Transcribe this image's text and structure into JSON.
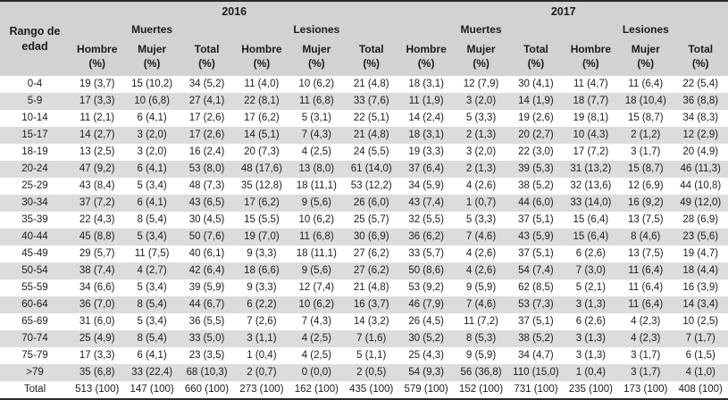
{
  "table": {
    "row_header": {
      "line1": "Rango de",
      "line2": "edad"
    },
    "years": [
      "2016",
      "2017"
    ],
    "groups": [
      "Muertes",
      "Lesiones",
      "Muertes",
      "Lesiones"
    ],
    "sub_labels": [
      "Hombre",
      "Mujer",
      "Total"
    ],
    "sub_unit": "(%)",
    "rows": [
      {
        "label": "0-4",
        "values": [
          "19 (3,7)",
          "15 (10,2)",
          "34 (5,2)",
          "11 (4,0)",
          "10 (6,2)",
          "21 (4,8)",
          "18 (3,1)",
          "12 (7,9)",
          "30 (4,1)",
          "11 (4,7)",
          "11 (6,4)",
          "22 (5,4)"
        ]
      },
      {
        "label": "5-9",
        "values": [
          "17 (3,3)",
          "10 (6,8)",
          "27 (4,1)",
          "22 (8,1)",
          "11 (6,8)",
          "33 (7,6)",
          "11 (1,9)",
          "3 (2,0)",
          "14 (1,9)",
          "18 (7,7)",
          "18 (10,4)",
          "36 (8,8)"
        ]
      },
      {
        "label": "10-14",
        "values": [
          "11 (2,1)",
          "6 (4,1)",
          "17 (2,6)",
          "17 (6,2)",
          "5 (3,1)",
          "22 (5,1)",
          "14 (2,4)",
          "5 (3,3)",
          "19 (2,6)",
          "19 (8,1)",
          "15 (8,7)",
          "34 (8,3)"
        ]
      },
      {
        "label": "15-17",
        "values": [
          "14 (2,7)",
          "3 (2,0)",
          "17 (2,6)",
          "14 (5,1)",
          "7 (4,3)",
          "21 (4,8)",
          "18 (3,1)",
          "2 (1,3)",
          "20 (2,7)",
          "10 (4,3)",
          "2 (1,2)",
          "12 (2,9)"
        ]
      },
      {
        "label": "18-19",
        "values": [
          "13 (2,5)",
          "3 (2,0)",
          "16 (2,4)",
          "20 (7,3)",
          "4 (2,5)",
          "24 (5,5)",
          "19 (3,3)",
          "3 (2,0)",
          "22 (3,0)",
          "17 (7,2)",
          "3 (1,7)",
          "20 (4,9)"
        ]
      },
      {
        "label": "20-24",
        "values": [
          "47 (9,2)",
          "6 (4,1)",
          "53 (8,0)",
          "48 (17,6)",
          "13 (8,0)",
          "61 (14,0)",
          "37 (6,4)",
          "2 (1,3)",
          "39 (5,3)",
          "31 (13,2)",
          "15 (8,7)",
          "46 (11,3)"
        ]
      },
      {
        "label": "25-29",
        "values": [
          "43 (8,4)",
          "5 (3,4)",
          "48 (7,3)",
          "35 (12,8)",
          "18 (11,1)",
          "53 (12,2)",
          "34 (5,9)",
          "4 (2,6)",
          "38 (5,2)",
          "32 (13,6)",
          "12 (6,9)",
          "44 (10,8)"
        ]
      },
      {
        "label": "30-34",
        "values": [
          "37 (7,2)",
          "6 (4,1)",
          "43 (6,5)",
          "17 (6,2)",
          "9 (5,6)",
          "26 (6,0)",
          "43 (7,4)",
          "1 (0,7)",
          "44 (6,0)",
          "33 (14,0)",
          "16 (9,2)",
          "49 (12,0)"
        ]
      },
      {
        "label": "35-39",
        "values": [
          "22 (4,3)",
          "8 (5,4)",
          "30 (4,5)",
          "15 (5,5)",
          "10 (6,2)",
          "25 (5,7)",
          "32 (5,5)",
          "5 (3,3)",
          "37 (5,1)",
          "15 (6,4)",
          "13 (7,5)",
          "28 (6,9)"
        ]
      },
      {
        "label": "40-44",
        "values": [
          "45 (8,8)",
          "5 (3,4)",
          "50 (7,6)",
          "19 (7,0)",
          "11 (6,8)",
          "30 (6,9)",
          "36 (6,2)",
          "7 (4,6)",
          "43 (5,9)",
          "15 (6,4)",
          "8 (4,6)",
          "23 (5,6)"
        ]
      },
      {
        "label": "45-49",
        "values": [
          "29 (5,7)",
          "11 (7,5)",
          "40 (6,1)",
          "9 (3,3)",
          "18 (11,1)",
          "27 (6,2)",
          "33 (5,7)",
          "4 (2,6)",
          "37 (5,1)",
          "6 (2,6)",
          "13 (7,5)",
          "19 (4,7)"
        ]
      },
      {
        "label": "50-54",
        "values": [
          "38 (7,4)",
          "4 (2,7)",
          "42 (6,4)",
          "18 (6,6)",
          "9 (5,6)",
          "27 (6,2)",
          "50 (8,6)",
          "4 (2,6)",
          "54 (7,4)",
          "7 (3,0)",
          "11 (6,4)",
          "18 (4,4)"
        ]
      },
      {
        "label": "55-59",
        "values": [
          "34 (6,6)",
          "5 (3,4)",
          "39 (5,9)",
          "9 (3,3)",
          "12 (7,4)",
          "21 (4,8)",
          "53 (9,2)",
          "9 (5,9)",
          "62 (8,5)",
          "5 (2,1)",
          "11 (6,4)",
          "16 (3,9)"
        ]
      },
      {
        "label": "60-64",
        "values": [
          "36 (7,0)",
          "8 (5,4)",
          "44 (6,7)",
          "6 (2,2)",
          "10 (6,2)",
          "16 (3,7)",
          "46 (7,9)",
          "7 (4,6)",
          "53 (7,3)",
          "3 (1,3)",
          "11 (6,4)",
          "14 (3,4)"
        ]
      },
      {
        "label": "65-69",
        "values": [
          "31 (6,0)",
          "5 (3,4)",
          "36 (5,5)",
          "7 (2,6)",
          "7 (4,3)",
          "14 (3,2)",
          "26 (4,5)",
          "11 (7,2)",
          "37 (5,1)",
          "6 (2,6)",
          "4 (2,3)",
          "10 (2,5)"
        ]
      },
      {
        "label": "70-74",
        "values": [
          "25 (4,9)",
          "8 (5,4)",
          "33 (5,0)",
          "3 (1,1)",
          "4 (2,5)",
          "7 (1,6)",
          "30 (5,2)",
          "8 (5,3)",
          "38 (5,2)",
          "3 (1,3)",
          "4 (2,3)",
          "7 (1,7)"
        ]
      },
      {
        "label": "75-79",
        "values": [
          "17 (3,3)",
          "6 (4,1)",
          "23 (3,5)",
          "1 (0,4)",
          "4 (2,5)",
          "5 (1,1)",
          "25 (4,3)",
          "9 (5,9)",
          "34 (4,7)",
          "3 (1,3)",
          "3 (1,7)",
          "6 (1,5)"
        ]
      },
      {
        "label": ">79",
        "values": [
          "35 (6,8)",
          "33 (22,4)",
          "68 (10,3)",
          "2 (0,7)",
          "0 (0,0)",
          "2 (0,5)",
          "54 (9,3)",
          "56 (36,8)",
          "110 (15,0)",
          "1 (0,4)",
          "3 (1,7)",
          "4 (1,0)"
        ]
      },
      {
        "label": "Total",
        "values": [
          "513 (100)",
          "147 (100)",
          "660 (100)",
          "273 (100)",
          "162 (100)",
          "435 (100)",
          "579 (100)",
          "152 (100)",
          "731 (100)",
          "235 (100)",
          "173 (100)",
          "408 (100)"
        ]
      }
    ],
    "colors": {
      "header_bg": "#d2d2d2",
      "stripe_bg": "#dcdcdc",
      "border": "#2a2a2a"
    }
  }
}
